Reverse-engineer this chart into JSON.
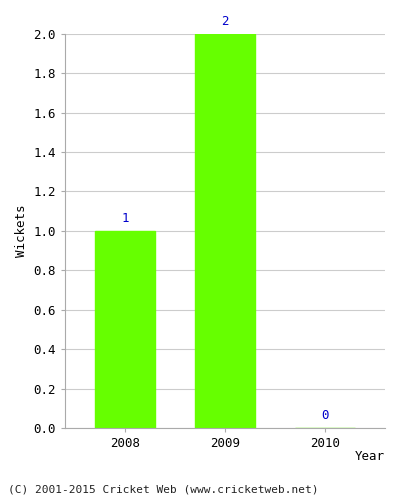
{
  "years": [
    "2008",
    "2009",
    "2010"
  ],
  "values": [
    1,
    2,
    0
  ],
  "bar_color": "#66ff00",
  "bar_edge_color": "#66ff00",
  "label_color": "#0000cc",
  "ylabel": "Wickets",
  "xlabel": "Year",
  "ylim": [
    0,
    2.0
  ],
  "yticks": [
    0.0,
    0.2,
    0.4,
    0.6,
    0.8,
    1.0,
    1.2,
    1.4,
    1.6,
    1.8,
    2.0
  ],
  "background_color": "#ffffff",
  "grid_color": "#cccccc",
  "footer_text": "(C) 2001-2015 Cricket Web (www.cricketweb.net)",
  "label_fontsize": 9,
  "tick_fontsize": 9,
  "footer_fontsize": 8,
  "bar_width": 0.6
}
